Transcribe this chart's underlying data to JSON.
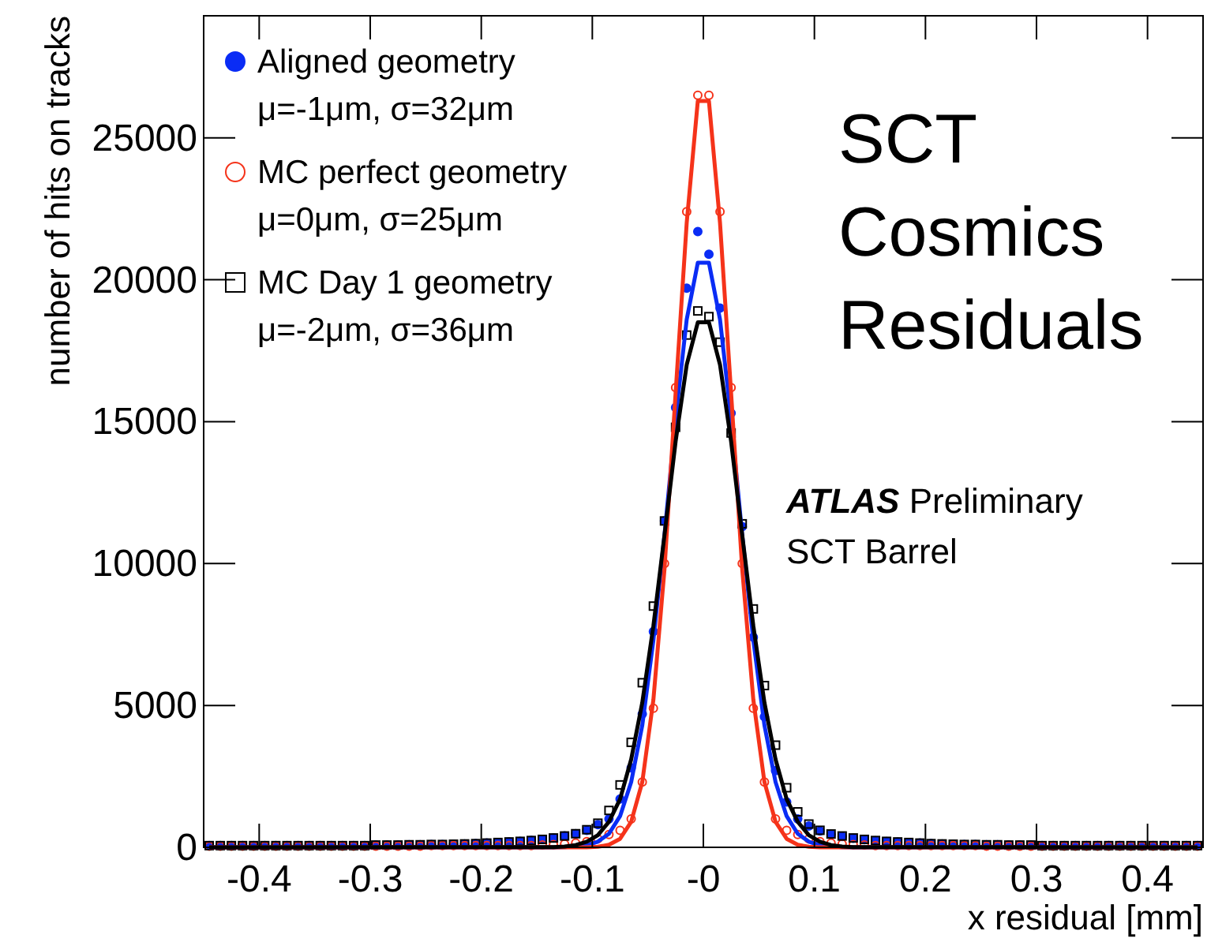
{
  "chart_data": {
    "type": "scatter",
    "xlabel": "x residual [mm]",
    "ylabel": "number of hits on tracks",
    "xlim": [
      -0.45,
      0.45
    ],
    "ylim": [
      0,
      29300
    ],
    "xticks": [
      -0.4,
      -0.3,
      -0.2,
      -0.1,
      {
        "value": 0,
        "label": "-0"
      },
      0.1,
      0.2,
      0.3,
      0.4
    ],
    "yticks": [
      0,
      5000,
      10000,
      15000,
      20000,
      25000
    ],
    "x": [
      -0.445,
      -0.435,
      -0.425,
      -0.415,
      -0.405,
      -0.395,
      -0.385,
      -0.375,
      -0.365,
      -0.355,
      -0.345,
      -0.335,
      -0.325,
      -0.315,
      -0.305,
      -0.295,
      -0.285,
      -0.275,
      -0.265,
      -0.255,
      -0.245,
      -0.235,
      -0.225,
      -0.215,
      -0.205,
      -0.195,
      -0.185,
      -0.175,
      -0.165,
      -0.155,
      -0.145,
      -0.135,
      -0.125,
      -0.115,
      -0.105,
      -0.095,
      -0.085,
      -0.075,
      -0.065,
      -0.055,
      -0.045,
      -0.035,
      -0.025,
      -0.015,
      -0.005,
      0.005,
      0.015,
      0.025,
      0.035,
      0.045,
      0.055,
      0.065,
      0.075,
      0.085,
      0.095,
      0.105,
      0.115,
      0.125,
      0.135,
      0.145,
      0.155,
      0.165,
      0.175,
      0.185,
      0.195,
      0.205,
      0.215,
      0.225,
      0.235,
      0.245,
      0.255,
      0.265,
      0.275,
      0.285,
      0.295,
      0.305,
      0.315,
      0.325,
      0.335,
      0.345,
      0.355,
      0.365,
      0.375,
      0.385,
      0.395,
      0.405,
      0.415,
      0.425,
      0.435,
      0.445
    ],
    "grid": false,
    "legend": "top left",
    "series": [
      {
        "name": "Aligned geometry\nμ=-1μm, σ=32μm",
        "marker": "circle",
        "color": "#0a2cf5",
        "values": [
          60,
          60,
          60,
          60,
          60,
          60,
          60,
          60,
          60,
          60,
          60,
          60,
          60,
          60,
          60,
          80,
          80,
          80,
          90,
          90,
          100,
          100,
          110,
          120,
          130,
          150,
          170,
          190,
          210,
          240,
          280,
          330,
          400,
          480,
          600,
          800,
          1000,
          1700,
          2800,
          4700,
          7600,
          11500,
          15500,
          19700,
          21700,
          20900,
          19000,
          15300,
          11300,
          7400,
          4600,
          2700,
          1600,
          1000,
          750,
          580,
          460,
          380,
          320,
          270,
          230,
          200,
          180,
          160,
          150,
          130,
          120,
          110,
          100,
          100,
          90,
          90,
          80,
          80,
          80,
          60,
          60,
          60,
          60,
          60,
          60,
          60,
          60,
          60,
          60,
          60,
          60,
          60,
          60,
          60
        ]
      },
      {
        "name": "MC perfect geometry\nμ=0μm, σ=25μm",
        "marker": "circle",
        "color": "#f5331a",
        "values": [
          40,
          40,
          40,
          40,
          40,
          40,
          40,
          40,
          40,
          40,
          40,
          40,
          40,
          40,
          40,
          40,
          40,
          40,
          40,
          40,
          60,
          60,
          60,
          60,
          60,
          60,
          60,
          60,
          60,
          60,
          80,
          100,
          120,
          150,
          200,
          300,
          450,
          600,
          1000,
          2300,
          4900,
          10000,
          16200,
          22400,
          26500,
          26500,
          22400,
          16200,
          10000,
          4900,
          2300,
          1000,
          600,
          450,
          300,
          200,
          150,
          120,
          100,
          80,
          60,
          60,
          60,
          60,
          60,
          60,
          60,
          60,
          60,
          60,
          40,
          40,
          40,
          40,
          40,
          40,
          40,
          40,
          40,
          40,
          40,
          40,
          40,
          40,
          40,
          40,
          40,
          40,
          40,
          40
        ]
      },
      {
        "name": "MC Day 1 geometry\nμ=-2μm, σ=36μm",
        "marker": "square",
        "color": "#000000",
        "values": [
          60,
          60,
          60,
          60,
          60,
          60,
          60,
          60,
          60,
          60,
          60,
          60,
          60,
          60,
          60,
          80,
          80,
          80,
          90,
          90,
          100,
          100,
          110,
          120,
          130,
          150,
          170,
          190,
          210,
          240,
          280,
          330,
          400,
          480,
          620,
          850,
          1300,
          2200,
          3700,
          5800,
          8500,
          11500,
          14800,
          18050,
          18900,
          18700,
          17800,
          14600,
          11400,
          8400,
          5700,
          3600,
          2100,
          1250,
          820,
          600,
          470,
          400,
          330,
          280,
          240,
          210,
          190,
          170,
          150,
          130,
          120,
          110,
          100,
          100,
          90,
          90,
          80,
          80,
          80,
          60,
          60,
          60,
          60,
          60,
          60,
          60,
          60,
          60,
          60,
          60,
          60,
          60,
          60,
          60
        ]
      },
      {
        "type": "line",
        "color": "#0a2cf5",
        "x": [
          -0.445,
          -0.135,
          -0.125,
          -0.115,
          -0.105,
          -0.095,
          -0.085,
          -0.075,
          -0.065,
          -0.055,
          -0.045,
          -0.035,
          -0.025,
          -0.015,
          -0.005,
          0.005,
          0.015,
          0.025,
          0.035,
          0.045,
          0.055,
          0.065,
          0.075,
          0.085,
          0.095,
          0.105,
          0.115,
          0.125,
          0.135,
          0.445
        ],
        "values": [
          0,
          0,
          10,
          30,
          70,
          200,
          480,
          1100,
          2300,
          4300,
          7300,
          11000,
          15100,
          18600,
          20600,
          20600,
          18600,
          15100,
          11000,
          7300,
          4300,
          2300,
          1100,
          480,
          200,
          70,
          30,
          10,
          0,
          0
        ]
      },
      {
        "type": "line",
        "color": "#f5331a",
        "x": [
          -0.445,
          -0.135,
          -0.125,
          -0.115,
          -0.105,
          -0.095,
          -0.085,
          -0.075,
          -0.065,
          -0.055,
          -0.045,
          -0.035,
          -0.025,
          -0.015,
          -0.005,
          0.005,
          0.015,
          0.025,
          0.035,
          0.045,
          0.055,
          0.065,
          0.075,
          0.085,
          0.095,
          0.105,
          0.115,
          0.125,
          0.135,
          0.445
        ],
        "values": [
          0,
          0,
          0,
          0,
          0,
          20,
          90,
          300,
          900,
          2300,
          5200,
          9800,
          16000,
          22000,
          26300,
          26300,
          22000,
          16000,
          9800,
          5200,
          2300,
          900,
          300,
          90,
          20,
          0,
          0,
          0,
          0,
          0
        ]
      },
      {
        "type": "line",
        "color": "#000000",
        "x": [
          -0.445,
          -0.135,
          -0.125,
          -0.115,
          -0.105,
          -0.095,
          -0.085,
          -0.075,
          -0.065,
          -0.055,
          -0.045,
          -0.035,
          -0.025,
          -0.015,
          -0.005,
          0.005,
          0.015,
          0.025,
          0.035,
          0.045,
          0.055,
          0.065,
          0.075,
          0.085,
          0.095,
          0.105,
          0.115,
          0.125,
          0.135,
          0.445
        ],
        "values": [
          0,
          10,
          30,
          80,
          200,
          430,
          900,
          1700,
          3100,
          5100,
          7800,
          11000,
          14300,
          17000,
          18500,
          18500,
          17000,
          14300,
          11000,
          7800,
          5100,
          3100,
          1700,
          900,
          430,
          200,
          80,
          30,
          10,
          0
        ]
      }
    ],
    "annotations": [
      "SCT\nCosmics\nResiduals",
      "ATLAS Preliminary",
      "SCT Barrel"
    ]
  }
}
